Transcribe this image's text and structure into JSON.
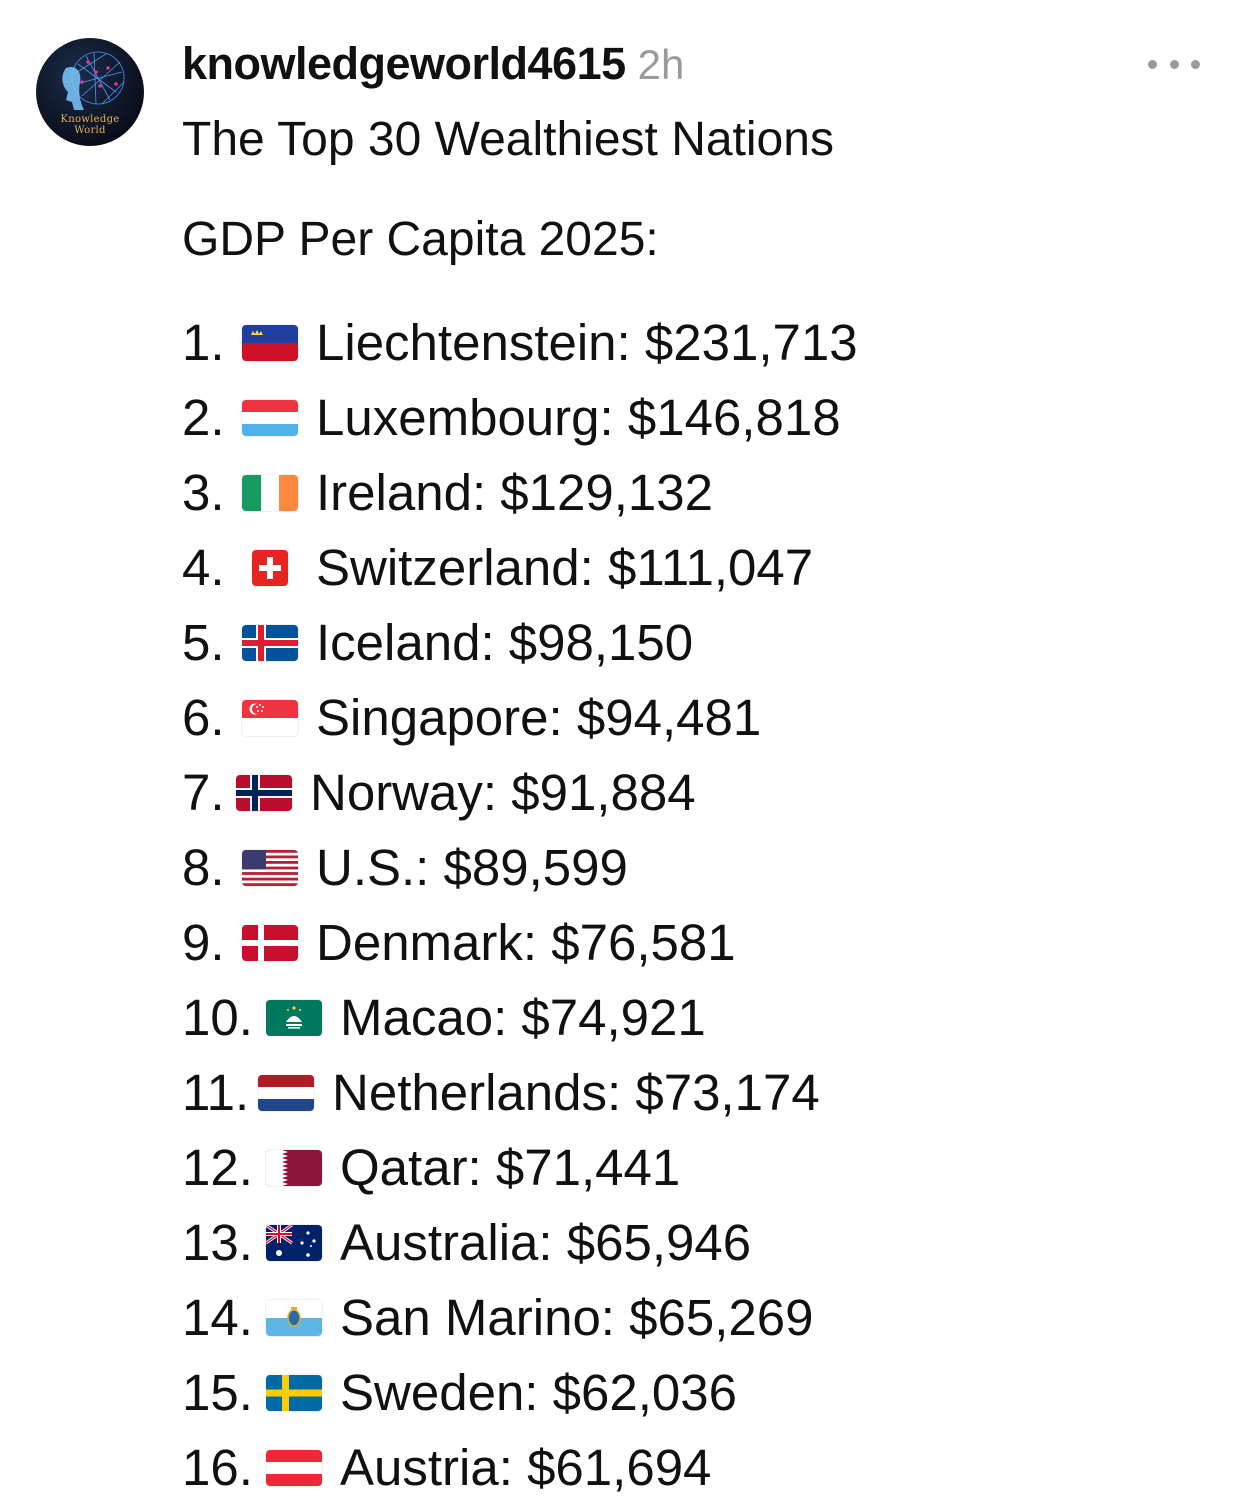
{
  "post": {
    "avatar_text_line1": "Knowledge",
    "avatar_text_line2": "World",
    "username": "knowledgeworld4615",
    "timestamp": "2h",
    "title": "The Top 30 Wealthiest Nations",
    "subtitle": "GDP Per Capita 2025:",
    "items": [
      {
        "rank": "1.",
        "flag": "liechtenstein-flag-icon",
        "text": "Liechtenstein: $231,713"
      },
      {
        "rank": "2.",
        "flag": "luxembourg-flag-icon",
        "text": "Luxembourg: $146,818"
      },
      {
        "rank": "3.",
        "flag": "ireland-flag-icon",
        "text": "Ireland: $129,132"
      },
      {
        "rank": "4.",
        "flag": "switzerland-flag-icon",
        "text": "Switzerland: $111,047"
      },
      {
        "rank": "5.",
        "flag": "iceland-flag-icon",
        "text": "Iceland: $98,150"
      },
      {
        "rank": "6.",
        "flag": "singapore-flag-icon",
        "text": "Singapore: $94,481"
      },
      {
        "rank": "7.",
        "flag": "norway-flag-icon",
        "text": "Norway: $91,884"
      },
      {
        "rank": "8.",
        "flag": "us-flag-icon",
        "text": "U.S.: $89,599"
      },
      {
        "rank": "9.",
        "flag": "denmark-flag-icon",
        "text": "Denmark: $76,581"
      },
      {
        "rank": "10.",
        "flag": "macao-flag-icon",
        "text": "Macao: $74,921"
      },
      {
        "rank": "11.",
        "flag": "netherlands-flag-icon",
        "text": "Netherlands: $73,174"
      },
      {
        "rank": "12.",
        "flag": "qatar-flag-icon",
        "text": "Qatar: $71,441"
      },
      {
        "rank": "13.",
        "flag": "australia-flag-icon",
        "text": "Australia: $65,946"
      },
      {
        "rank": "14.",
        "flag": "san-marino-flag-icon",
        "text": "San Marino: $65,269"
      },
      {
        "rank": "15.",
        "flag": "sweden-flag-icon",
        "text": "Sweden: $62,036"
      },
      {
        "rank": "16.",
        "flag": "austria-flag-icon",
        "text": "Austria: $61,694"
      }
    ]
  },
  "colors": {
    "text": "#111111",
    "muted": "#9a9a9a",
    "avatar_bg": "#0a0f1c",
    "avatar_accent": "#e8b15a"
  }
}
